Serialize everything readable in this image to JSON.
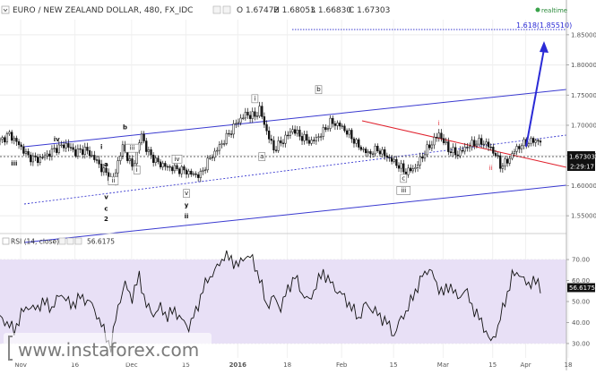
{
  "header": {
    "symbol": "EURO / NEW ZEALAND DOLLAR, 480, FX_IDC",
    "open": "O 1.67472",
    "high": "H 1.68053",
    "low": "L 1.66830",
    "close": "C 1.67303",
    "realtime_label": "realtime"
  },
  "colors": {
    "bull": "#111111",
    "channel": "#3a3ad0",
    "redline": "#e0202c",
    "rsi_line": "#111111",
    "rsi_band": "#e8e0f6",
    "arrow": "#2a2ad6"
  },
  "chart_data": [
    {
      "type": "candlestick",
      "title": "EURO / NEW ZEALAND DOLLAR, 480, FX_IDC",
      "ylim": [
        1.525,
        1.875
      ],
      "y_ticks": [
        1.55,
        1.6,
        1.65,
        1.7,
        1.75,
        1.8,
        1.85
      ],
      "x_ticks": [
        "Nov",
        "16",
        "Dec",
        "15",
        "2016",
        "18",
        "Feb",
        "15",
        "Mar",
        "15",
        "Apr",
        "18"
      ],
      "price_labels": {
        "last": "1.67303",
        "countdown": "2:29:17"
      },
      "target_label": "1.618(1.85510)",
      "target_level": 1.8551,
      "close_path": [
        [
          0,
          1.674
        ],
        [
          4,
          1.685
        ],
        [
          8,
          1.668
        ],
        [
          12,
          1.648
        ],
        [
          16,
          1.643
        ],
        [
          20,
          1.651
        ],
        [
          24,
          1.662
        ],
        [
          28,
          1.668
        ],
        [
          32,
          1.655
        ],
        [
          36,
          1.66
        ],
        [
          40,
          1.645
        ],
        [
          44,
          1.624
        ],
        [
          48,
          1.606
        ],
        [
          50,
          1.64
        ],
        [
          52,
          1.664
        ],
        [
          54,
          1.648
        ],
        [
          56,
          1.63
        ],
        [
          58,
          1.655
        ],
        [
          60,
          1.686
        ],
        [
          62,
          1.66
        ],
        [
          66,
          1.64
        ],
        [
          70,
          1.632
        ],
        [
          74,
          1.628
        ],
        [
          78,
          1.625
        ],
        [
          82,
          1.618
        ],
        [
          85,
          1.618
        ],
        [
          88,
          1.64
        ],
        [
          92,
          1.66
        ],
        [
          96,
          1.68
        ],
        [
          100,
          1.703
        ],
        [
          104,
          1.718
        ],
        [
          108,
          1.715
        ],
        [
          110,
          1.727
        ],
        [
          113,
          1.69
        ],
        [
          116,
          1.66
        ],
        [
          120,
          1.675
        ],
        [
          124,
          1.693
        ],
        [
          128,
          1.68
        ],
        [
          132,
          1.672
        ],
        [
          136,
          1.685
        ],
        [
          140,
          1.705
        ],
        [
          144,
          1.7
        ],
        [
          148,
          1.685
        ],
        [
          152,
          1.665
        ],
        [
          156,
          1.653
        ],
        [
          160,
          1.66
        ],
        [
          164,
          1.648
        ],
        [
          168,
          1.636
        ],
        [
          172,
          1.622
        ],
        [
          176,
          1.63
        ],
        [
          180,
          1.655
        ],
        [
          184,
          1.676
        ],
        [
          186,
          1.686
        ],
        [
          190,
          1.66
        ],
        [
          194,
          1.652
        ],
        [
          198,
          1.665
        ],
        [
          202,
          1.672
        ],
        [
          206,
          1.67
        ],
        [
          210,
          1.652
        ],
        [
          212,
          1.633
        ],
        [
          215,
          1.64
        ],
        [
          218,
          1.658
        ],
        [
          221,
          1.668
        ],
        [
          224,
          1.672
        ],
        [
          227,
          1.675
        ],
        [
          229,
          1.673
        ]
      ],
      "annotations": [
        {
          "text": "iii",
          "i": 6,
          "price": 1.633,
          "style": "plain"
        },
        {
          "text": "iv",
          "i": 24,
          "price": 1.673,
          "style": "plain"
        },
        {
          "text": "i",
          "i": 43,
          "price": 1.661,
          "style": "plain"
        },
        {
          "text": "a",
          "i": 45,
          "price": 1.632,
          "style": "plain"
        },
        {
          "text": "ii",
          "i": 48,
          "price": 1.605,
          "style": "box"
        },
        {
          "text": "v",
          "i": 45,
          "price": 1.578,
          "style": "plain"
        },
        {
          "text": "c",
          "i": 45,
          "price": 1.558,
          "style": "plain"
        },
        {
          "text": "2",
          "i": 45,
          "price": 1.541,
          "style": "plain"
        },
        {
          "text": "b",
          "i": 53,
          "price": 1.693,
          "style": "plain"
        },
        {
          "text": "iii",
          "i": 56,
          "price": 1.659,
          "style": "box"
        },
        {
          "text": "i",
          "i": 58,
          "price": 1.623,
          "style": "box"
        },
        {
          "text": "iv",
          "i": 75,
          "price": 1.641,
          "style": "box"
        },
        {
          "text": "v",
          "i": 79,
          "price": 1.584,
          "style": "box"
        },
        {
          "text": "y",
          "i": 79,
          "price": 1.564,
          "style": "plain"
        },
        {
          "text": "ii",
          "i": 79,
          "price": 1.546,
          "style": "plain"
        },
        {
          "text": "i",
          "i": 108,
          "price": 1.741,
          "style": "box"
        },
        {
          "text": "a",
          "i": 111,
          "price": 1.645,
          "style": "box"
        },
        {
          "text": "b",
          "i": 135,
          "price": 1.756,
          "style": "box"
        },
        {
          "text": "c",
          "i": 171,
          "price": 1.609,
          "style": "box"
        },
        {
          "text": "iii",
          "i": 171,
          "price": 1.589,
          "style": "box"
        },
        {
          "text": "i",
          "i": 186,
          "price": 1.7,
          "style": "red"
        },
        {
          "text": "ii",
          "i": 208,
          "price": 1.626,
          "style": "red"
        }
      ]
    },
    {
      "type": "line",
      "title": "RSI (14, close)",
      "last_value": "56.6175",
      "ylim": [
        24,
        76
      ],
      "y_ticks": [
        30,
        40,
        50,
        60,
        70
      ],
      "band": [
        30,
        70
      ],
      "values_path": [
        [
          0,
          42
        ],
        [
          3,
          40
        ],
        [
          6,
          36
        ],
        [
          9,
          44
        ],
        [
          12,
          48
        ],
        [
          15,
          46
        ],
        [
          18,
          50
        ],
        [
          22,
          47
        ],
        [
          26,
          54
        ],
        [
          30,
          48
        ],
        [
          34,
          52
        ],
        [
          38,
          50
        ],
        [
          41,
          44
        ],
        [
          44,
          36
        ],
        [
          47,
          28
        ],
        [
          50,
          48
        ],
        [
          53,
          58
        ],
        [
          56,
          52
        ],
        [
          59,
          62
        ],
        [
          62,
          48
        ],
        [
          65,
          44
        ],
        [
          68,
          47
        ],
        [
          71,
          43
        ],
        [
          74,
          46
        ],
        [
          77,
          41
        ],
        [
          80,
          38
        ],
        [
          83,
          45
        ],
        [
          86,
          56
        ],
        [
          89,
          62
        ],
        [
          92,
          66
        ],
        [
          95,
          72
        ],
        [
          98,
          70
        ],
        [
          101,
          67
        ],
        [
          104,
          72
        ],
        [
          107,
          70
        ],
        [
          110,
          61
        ],
        [
          113,
          48
        ],
        [
          116,
          52
        ],
        [
          119,
          47
        ],
        [
          122,
          56
        ],
        [
          125,
          62
        ],
        [
          128,
          54
        ],
        [
          131,
          50
        ],
        [
          134,
          58
        ],
        [
          137,
          64
        ],
        [
          140,
          59
        ],
        [
          143,
          55
        ],
        [
          146,
          52
        ],
        [
          149,
          47
        ],
        [
          152,
          42
        ],
        [
          155,
          49
        ],
        [
          158,
          46
        ],
        [
          161,
          43
        ],
        [
          164,
          40
        ],
        [
          167,
          34
        ],
        [
          170,
          42
        ],
        [
          173,
          47
        ],
        [
          176,
          55
        ],
        [
          179,
          62
        ],
        [
          182,
          66
        ],
        [
          185,
          58
        ],
        [
          188,
          54
        ],
        [
          191,
          58
        ],
        [
          194,
          51
        ],
        [
          197,
          56
        ],
        [
          200,
          48
        ],
        [
          203,
          42
        ],
        [
          206,
          36
        ],
        [
          208,
          30
        ],
        [
          211,
          38
        ],
        [
          214,
          50
        ],
        [
          217,
          62
        ],
        [
          220,
          64
        ],
        [
          223,
          58
        ],
        [
          226,
          60
        ],
        [
          229,
          57
        ]
      ]
    }
  ],
  "watermark": {
    "text": "www.instaforex.com"
  }
}
